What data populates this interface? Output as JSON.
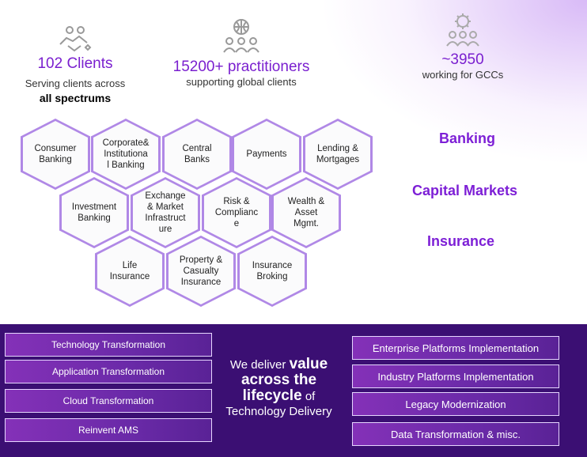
{
  "stats": {
    "clients": {
      "icon": "handshake-icon",
      "value": "102 Clients",
      "line1": "Serving clients across",
      "line2": "all spectrums"
    },
    "practitioners": {
      "icon": "global-people-icon",
      "value": "15200+ practitioners",
      "line1": "supporting global clients"
    },
    "gcc": {
      "icon": "gear-people-icon",
      "value": "~3950",
      "line1": "working for GCCs"
    }
  },
  "hexagons": {
    "consumer_banking": "Consumer\nBanking",
    "corporate_banking": "Corporate&\nInstitutiona\nl Banking",
    "central_banks": "Central\nBanks",
    "payments": "Payments",
    "lending": "Lending &\nMortgages",
    "investment_banking": "Investment\nBanking",
    "exchange": "Exchange\n& Market\nInfrastruct\nure",
    "risk": "Risk &\nComplianc\ne",
    "wealth": "Wealth &\nAsset\nMgmt.",
    "life": "Life\nInsurance",
    "property": "Property &\nCasualty\nInsurance",
    "broking": "Insurance\nBroking"
  },
  "sectors": {
    "banking": "Banking",
    "capital_markets": "Capital Markets",
    "insurance": "Insurance"
  },
  "left_services": [
    "Technology Transformation",
    "Application Transformation",
    "Cloud Transformation",
    "Reinvent AMS"
  ],
  "right_services": [
    "Enterprise Platforms Implementation",
    "Industry Platforms Implementation",
    "Legacy Modernization",
    "Data Transformation & misc."
  ],
  "tagline": {
    "pre": "We deliver ",
    "bold": "value across the lifecycle",
    "post": " of Technology Delivery"
  },
  "colors": {
    "accent": "#7a1fcf",
    "banner": "#3b0f73"
  }
}
